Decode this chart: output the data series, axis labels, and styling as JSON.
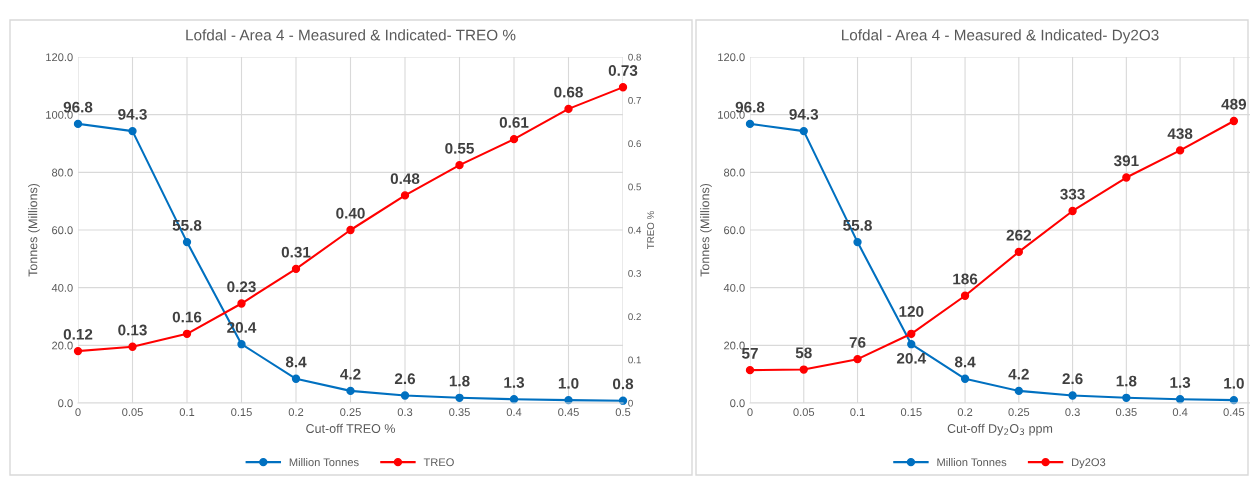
{
  "chart_data": [
    {
      "type": "line",
      "title": "Lofdal - Area 4 - Measured & Indicated- TREO %",
      "xlabel": "Cut-off TREO %",
      "ylabel": "Tonnes (Millions)",
      "y2label": "TREO %",
      "categories": [
        "0",
        "0.05",
        "0.1",
        "0.15",
        "0.2",
        "0.25",
        "0.3",
        "0.35",
        "0.4",
        "0.45",
        "0.5"
      ],
      "ylim": [
        0,
        120
      ],
      "yticks": [
        {
          "value": 0,
          "label": "0.0"
        },
        {
          "value": 20,
          "label": "20.0"
        },
        {
          "value": 40,
          "label": "40.0"
        },
        {
          "value": 60,
          "label": "60.0"
        },
        {
          "value": 80,
          "label": "80.0"
        },
        {
          "value": 100,
          "label": "100.0"
        },
        {
          "value": 120,
          "label": "120.0"
        }
      ],
      "y2lim": [
        0,
        0.8
      ],
      "y2ticks": [
        0,
        0.1,
        0.2,
        0.3,
        0.4,
        0.5,
        0.6,
        0.7,
        0.8
      ],
      "series": [
        {
          "name": "Million Tonnes",
          "color": "#0070c0",
          "values": [
            96.8,
            94.3,
            55.8,
            20.4,
            8.4,
            4.2,
            2.6,
            1.8,
            1.3,
            1.0,
            0.8
          ],
          "value_labels": [
            "96.8",
            "94.3",
            "55.8",
            "20.4",
            "8.4",
            "4.2",
            "2.6",
            "1.8",
            "1.3",
            "1.0",
            "0.8"
          ]
        },
        {
          "name": "TREO",
          "color": "#ff0000",
          "axis": "y2",
          "values": [
            0.12,
            0.13,
            0.16,
            0.23,
            0.31,
            0.4,
            0.48,
            0.55,
            0.61,
            0.68,
            0.73
          ],
          "value_labels": [
            "0.12",
            "0.13",
            "0.16",
            "0.23",
            "0.31",
            "0.40",
            "0.48",
            "0.55",
            "0.61",
            "0.68",
            "0.73"
          ]
        }
      ],
      "marker": "circle",
      "line_style": "solid",
      "grid": true,
      "legend": "bottom"
    },
    {
      "type": "line",
      "title": "Lofdal - Area 4 - Measured & Indicated- Dy2O3",
      "xlabel": "Cut-off Dy$_{2}$O$_{3}$ ppm",
      "ylabel": "Tonnes (Millions)",
      "categories": [
        "0",
        "0.05",
        "0.1",
        "0.15",
        "0.2",
        "0.25",
        "0.3",
        "0.35",
        "0.4",
        "0.45"
      ],
      "ylim": [
        0,
        120
      ],
      "yticks": [
        {
          "value": 0,
          "label": "0.0"
        },
        {
          "value": 20,
          "label": "20.0"
        },
        {
          "value": 40,
          "label": "40.0"
        },
        {
          "value": 60,
          "label": "60.0"
        },
        {
          "value": 80,
          "label": "80.0"
        },
        {
          "value": 100,
          "label": "100.0"
        },
        {
          "value": 120,
          "label": "120.0"
        }
      ],
      "y2lim": [
        0,
        600
      ],
      "series": [
        {
          "name": "Million Tonnes",
          "color": "#0070c0",
          "values": [
            96.8,
            94.3,
            55.8,
            20.4,
            8.4,
            4.2,
            2.6,
            1.8,
            1.3,
            1.0
          ],
          "value_labels": [
            "96.8",
            "94.3",
            "55.8",
            "20.4",
            "8.4",
            "4.2",
            "2.6",
            "1.8",
            "1.3",
            "1.0"
          ]
        },
        {
          "name": "Dy2O3",
          "color": "#ff0000",
          "axis": "y2",
          "values": [
            57,
            58,
            76,
            120,
            186,
            262,
            333,
            391,
            438,
            489
          ],
          "value_labels": [
            "57",
            "58",
            "76",
            "120",
            "186",
            "262",
            "333",
            "391",
            "438",
            "489"
          ]
        }
      ],
      "marker": "circle",
      "line_style": "solid",
      "grid": true,
      "legend": "bottom"
    }
  ]
}
